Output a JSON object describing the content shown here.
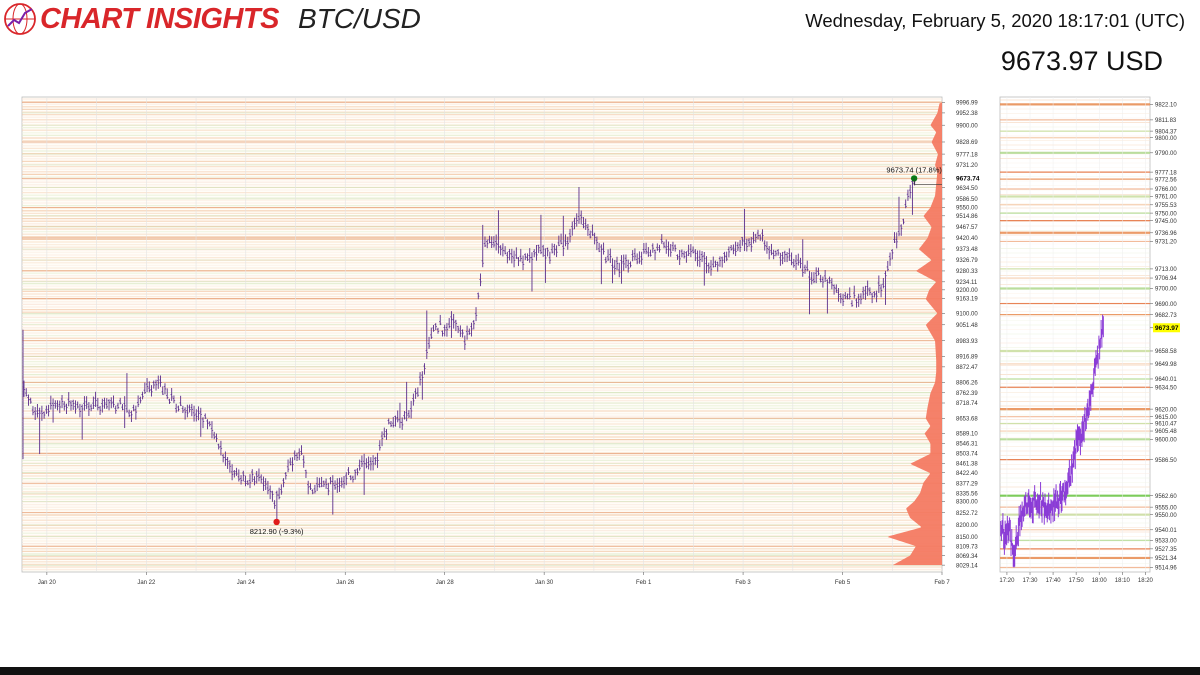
{
  "header": {
    "logo_text": "CHART INSIGHTS",
    "symbol": "BTC/USD",
    "datetime": "Wednesday, February 5, 2020 18:17:01 (UTC)",
    "price": "9673.97 USD"
  },
  "colors": {
    "bars": "#5a2d8c",
    "intraday": "#8a3bd6",
    "profile": "#f47a62",
    "logo": "#d9262a",
    "high_marker": "#0b7a16",
    "low_marker": "#e01b1b",
    "current_price_highlight": "#ffff00"
  },
  "chart_data": [
    {
      "type": "bar",
      "x_tick_labels": [
        "Jan 20",
        "Jan 22",
        "Jan 24",
        "Jan 26",
        "Jan 28",
        "Jan 30",
        "Feb 1",
        "Feb 3",
        "Feb 5",
        "Feb 7"
      ],
      "xlim_days": [
        19.5,
        38
      ],
      "ylim": [
        8000,
        10020
      ],
      "y_tick_labels": [
        "9996.99",
        "9952.38",
        "9900.00",
        "9828.69",
        "9777.18",
        "9731.20",
        "9673.74",
        "9634.50",
        "9586.50",
        "9550.00",
        "9514.86",
        "9467.57",
        "9420.40",
        "9373.48",
        "9326.79",
        "9280.33",
        "9234.11",
        "9200.00",
        "9163.19",
        "9100.00",
        "9051.48",
        "8983.93",
        "8916.89",
        "8872.47",
        "8806.26",
        "8762.39",
        "8718.74",
        "8653.68",
        "8589.10",
        "8546.31",
        "8503.74",
        "8461.38",
        "8422.40",
        "8377.29",
        "8335.56",
        "8300.00",
        "8252.72",
        "8200.00",
        "8150.00",
        "8109.73",
        "8069.34",
        "8029.14"
      ],
      "current_price_label": "9673.74",
      "series": {
        "kp": [
          [
            19.5,
            8780
          ],
          [
            19.7,
            8700
          ],
          [
            20.0,
            8690
          ],
          [
            20.3,
            8730
          ],
          [
            20.6,
            8700
          ],
          [
            21.0,
            8715
          ],
          [
            21.4,
            8710
          ],
          [
            21.8,
            8680
          ],
          [
            22.0,
            8780
          ],
          [
            22.3,
            8790
          ],
          [
            22.6,
            8700
          ],
          [
            23.0,
            8680
          ],
          [
            23.3,
            8620
          ],
          [
            23.6,
            8480
          ],
          [
            23.8,
            8410
          ],
          [
            24.0,
            8390
          ],
          [
            24.3,
            8420
          ],
          [
            24.5,
            8330
          ],
          [
            24.6,
            8300
          ],
          [
            24.9,
            8460
          ],
          [
            25.1,
            8520
          ],
          [
            25.3,
            8340
          ],
          [
            25.6,
            8360
          ],
          [
            26.0,
            8400
          ],
          [
            26.3,
            8440
          ],
          [
            26.6,
            8470
          ],
          [
            26.9,
            8650
          ],
          [
            27.2,
            8640
          ],
          [
            27.5,
            8800
          ],
          [
            27.8,
            9060
          ],
          [
            28.0,
            9020
          ],
          [
            28.2,
            9080
          ],
          [
            28.4,
            8980
          ],
          [
            28.6,
            9050
          ],
          [
            28.8,
            9380
          ],
          [
            29.0,
            9400
          ],
          [
            29.3,
            9340
          ],
          [
            29.6,
            9320
          ],
          [
            29.9,
            9370
          ],
          [
            30.1,
            9350
          ],
          [
            30.4,
            9390
          ],
          [
            30.7,
            9520
          ],
          [
            30.9,
            9460
          ],
          [
            31.2,
            9350
          ],
          [
            31.5,
            9300
          ],
          [
            31.8,
            9330
          ],
          [
            32.1,
            9360
          ],
          [
            32.4,
            9400
          ],
          [
            32.7,
            9350
          ],
          [
            33.0,
            9370
          ],
          [
            33.3,
            9300
          ],
          [
            33.6,
            9330
          ],
          [
            33.9,
            9390
          ],
          [
            34.1,
            9400
          ],
          [
            34.4,
            9430
          ],
          [
            34.6,
            9340
          ],
          [
            34.8,
            9350
          ],
          [
            35.1,
            9320
          ],
          [
            35.3,
            9270
          ],
          [
            35.6,
            9250
          ],
          [
            35.9,
            9200
          ],
          [
            36.1,
            9150
          ],
          [
            36.4,
            9180
          ],
          [
            36.7,
            9200
          ],
          [
            36.9,
            9260
          ],
          [
            37.0,
            9380
          ],
          [
            37.2,
            9470
          ],
          [
            37.4,
            9674
          ]
        ],
        "high": {
          "x": 37.44,
          "y": 9673.74,
          "label": "9673.74 (17.8%)"
        },
        "low": {
          "x": 24.62,
          "y": 8212.9,
          "label": "8212.90 (-9.3%)"
        }
      },
      "volume_profile_kp": [
        [
          8029,
          0.85
        ],
        [
          8070,
          0.55
        ],
        [
          8110,
          0.45
        ],
        [
          8150,
          0.95
        ],
        [
          8190,
          0.35
        ],
        [
          8230,
          0.55
        ],
        [
          8270,
          0.62
        ],
        [
          8300,
          0.48
        ],
        [
          8335,
          0.38
        ],
        [
          8380,
          0.32
        ],
        [
          8420,
          0.2
        ],
        [
          8460,
          0.55
        ],
        [
          8503,
          0.2
        ],
        [
          8546,
          0.2
        ],
        [
          8589,
          0.3
        ],
        [
          8620,
          0.2
        ],
        [
          8653,
          0.28
        ],
        [
          8700,
          0.25
        ],
        [
          8760,
          0.2
        ],
        [
          8806,
          0.12
        ],
        [
          8850,
          0.1
        ],
        [
          8900,
          0.1
        ],
        [
          8983,
          0.12
        ],
        [
          9051,
          0.28
        ],
        [
          9100,
          0.08
        ],
        [
          9160,
          0.28
        ],
        [
          9200,
          0.22
        ],
        [
          9234,
          0.1
        ],
        [
          9280,
          0.45
        ],
        [
          9326,
          0.18
        ],
        [
          9373,
          0.4
        ],
        [
          9420,
          0.25
        ],
        [
          9467,
          0.18
        ],
        [
          9514,
          0.32
        ],
        [
          9550,
          0.2
        ],
        [
          9600,
          0.12
        ],
        [
          9650,
          0.1
        ],
        [
          9700,
          0.08
        ],
        [
          9731,
          0.12
        ],
        [
          9777,
          0.07
        ],
        [
          9828,
          0.18
        ],
        [
          9870,
          0.1
        ],
        [
          9900,
          0.2
        ],
        [
          9952,
          0.08
        ],
        [
          9996,
          0.04
        ]
      ]
    },
    {
      "type": "line",
      "x_tick_labels": [
        "17:20",
        "17:30",
        "17:40",
        "17:50",
        "18:00",
        "18:10",
        "18:20"
      ],
      "xlim_minutes": [
        1037,
        1102
      ],
      "ylim": [
        9512,
        9827
      ],
      "y_tick_labels": [
        "9822.10",
        "9811.83",
        "9804.37",
        "9800.00",
        "9790.00",
        "9777.18",
        "9772.56",
        "9766.00",
        "9761.00",
        "9755.53",
        "9750.00",
        "9745.00",
        "9736.96",
        "9731.20",
        "9713.00",
        "9706.94",
        "9700.00",
        "9690.00",
        "9682.73",
        "9673.97",
        "9658.58",
        "9649.98",
        "9640.01",
        "9634.50",
        "9620.00",
        "9615.00",
        "9610.47",
        "9605.48",
        "9600.00",
        "9586.50",
        "9562.60",
        "9555.00",
        "9550.00",
        "9540.01",
        "9533.00",
        "9527.35",
        "9521.34",
        "9514.96"
      ],
      "current_price_label": "9673.97",
      "series": {
        "kp": [
          [
            1037,
            9545
          ],
          [
            1039,
            9535
          ],
          [
            1041,
            9540
          ],
          [
            1043,
            9525
          ],
          [
            1044,
            9530
          ],
          [
            1046,
            9550
          ],
          [
            1048,
            9555
          ],
          [
            1050,
            9555
          ],
          [
            1053,
            9560
          ],
          [
            1056,
            9555
          ],
          [
            1060,
            9555
          ],
          [
            1063,
            9560
          ],
          [
            1066,
            9565
          ],
          [
            1068,
            9580
          ],
          [
            1070,
            9595
          ],
          [
            1072,
            9605
          ],
          [
            1074,
            9610
          ],
          [
            1076,
            9625
          ],
          [
            1078,
            9645
          ],
          [
            1080,
            9660
          ],
          [
            1081,
            9668
          ],
          [
            1082,
            9674
          ]
        ]
      }
    }
  ]
}
